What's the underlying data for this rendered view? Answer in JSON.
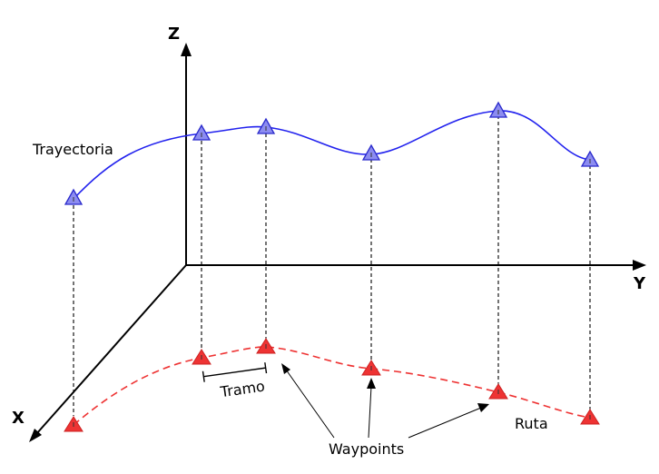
{
  "axes": {
    "x_label": "X",
    "y_label": "Y",
    "z_label": "Z"
  },
  "labels": {
    "trajectory": "Trayectoria",
    "route": "Ruta",
    "segment": "Tramo",
    "waypoints": "Waypoints"
  },
  "colors": {
    "trajectory": "#2222ee",
    "trajectory_marker_fill": "#8c8cf0",
    "route": "#ee3333",
    "route_marker_fill": "#ee3333",
    "axes": "#000000"
  },
  "waypoint_count": 6
}
